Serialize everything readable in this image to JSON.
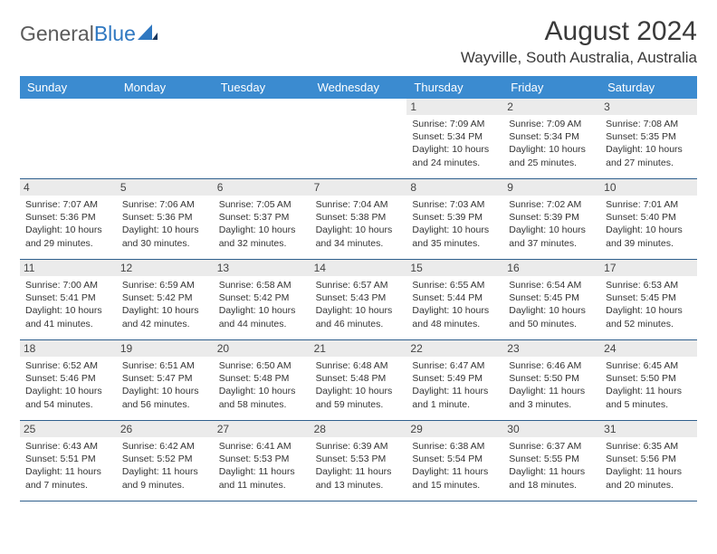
{
  "brand": {
    "part1": "General",
    "part2": "Blue"
  },
  "title": "August 2024",
  "location": "Wayville, South Australia, Australia",
  "theme": {
    "header_bg": "#3b8bd0",
    "header_text": "#ffffff",
    "daynum_bg": "#ebebeb",
    "rule": "#2f5f8d",
    "page_bg": "#ffffff",
    "text": "#333333"
  },
  "day_names": [
    "Sunday",
    "Monday",
    "Tuesday",
    "Wednesday",
    "Thursday",
    "Friday",
    "Saturday"
  ],
  "weeks": [
    [
      null,
      null,
      null,
      null,
      {
        "n": "1",
        "sr": "7:09 AM",
        "ss": "5:34 PM",
        "dl": "10 hours and 24 minutes."
      },
      {
        "n": "2",
        "sr": "7:09 AM",
        "ss": "5:34 PM",
        "dl": "10 hours and 25 minutes."
      },
      {
        "n": "3",
        "sr": "7:08 AM",
        "ss": "5:35 PM",
        "dl": "10 hours and 27 minutes."
      }
    ],
    [
      {
        "n": "4",
        "sr": "7:07 AM",
        "ss": "5:36 PM",
        "dl": "10 hours and 29 minutes."
      },
      {
        "n": "5",
        "sr": "7:06 AM",
        "ss": "5:36 PM",
        "dl": "10 hours and 30 minutes."
      },
      {
        "n": "6",
        "sr": "7:05 AM",
        "ss": "5:37 PM",
        "dl": "10 hours and 32 minutes."
      },
      {
        "n": "7",
        "sr": "7:04 AM",
        "ss": "5:38 PM",
        "dl": "10 hours and 34 minutes."
      },
      {
        "n": "8",
        "sr": "7:03 AM",
        "ss": "5:39 PM",
        "dl": "10 hours and 35 minutes."
      },
      {
        "n": "9",
        "sr": "7:02 AM",
        "ss": "5:39 PM",
        "dl": "10 hours and 37 minutes."
      },
      {
        "n": "10",
        "sr": "7:01 AM",
        "ss": "5:40 PM",
        "dl": "10 hours and 39 minutes."
      }
    ],
    [
      {
        "n": "11",
        "sr": "7:00 AM",
        "ss": "5:41 PM",
        "dl": "10 hours and 41 minutes."
      },
      {
        "n": "12",
        "sr": "6:59 AM",
        "ss": "5:42 PM",
        "dl": "10 hours and 42 minutes."
      },
      {
        "n": "13",
        "sr": "6:58 AM",
        "ss": "5:42 PM",
        "dl": "10 hours and 44 minutes."
      },
      {
        "n": "14",
        "sr": "6:57 AM",
        "ss": "5:43 PM",
        "dl": "10 hours and 46 minutes."
      },
      {
        "n": "15",
        "sr": "6:55 AM",
        "ss": "5:44 PM",
        "dl": "10 hours and 48 minutes."
      },
      {
        "n": "16",
        "sr": "6:54 AM",
        "ss": "5:45 PM",
        "dl": "10 hours and 50 minutes."
      },
      {
        "n": "17",
        "sr": "6:53 AM",
        "ss": "5:45 PM",
        "dl": "10 hours and 52 minutes."
      }
    ],
    [
      {
        "n": "18",
        "sr": "6:52 AM",
        "ss": "5:46 PM",
        "dl": "10 hours and 54 minutes."
      },
      {
        "n": "19",
        "sr": "6:51 AM",
        "ss": "5:47 PM",
        "dl": "10 hours and 56 minutes."
      },
      {
        "n": "20",
        "sr": "6:50 AM",
        "ss": "5:48 PM",
        "dl": "10 hours and 58 minutes."
      },
      {
        "n": "21",
        "sr": "6:48 AM",
        "ss": "5:48 PM",
        "dl": "10 hours and 59 minutes."
      },
      {
        "n": "22",
        "sr": "6:47 AM",
        "ss": "5:49 PM",
        "dl": "11 hours and 1 minute."
      },
      {
        "n": "23",
        "sr": "6:46 AM",
        "ss": "5:50 PM",
        "dl": "11 hours and 3 minutes."
      },
      {
        "n": "24",
        "sr": "6:45 AM",
        "ss": "5:50 PM",
        "dl": "11 hours and 5 minutes."
      }
    ],
    [
      {
        "n": "25",
        "sr": "6:43 AM",
        "ss": "5:51 PM",
        "dl": "11 hours and 7 minutes."
      },
      {
        "n": "26",
        "sr": "6:42 AM",
        "ss": "5:52 PM",
        "dl": "11 hours and 9 minutes."
      },
      {
        "n": "27",
        "sr": "6:41 AM",
        "ss": "5:53 PM",
        "dl": "11 hours and 11 minutes."
      },
      {
        "n": "28",
        "sr": "6:39 AM",
        "ss": "5:53 PM",
        "dl": "11 hours and 13 minutes."
      },
      {
        "n": "29",
        "sr": "6:38 AM",
        "ss": "5:54 PM",
        "dl": "11 hours and 15 minutes."
      },
      {
        "n": "30",
        "sr": "6:37 AM",
        "ss": "5:55 PM",
        "dl": "11 hours and 18 minutes."
      },
      {
        "n": "31",
        "sr": "6:35 AM",
        "ss": "5:56 PM",
        "dl": "11 hours and 20 minutes."
      }
    ]
  ],
  "labels": {
    "sunrise": "Sunrise: ",
    "sunset": "Sunset: ",
    "daylight": "Daylight: "
  }
}
